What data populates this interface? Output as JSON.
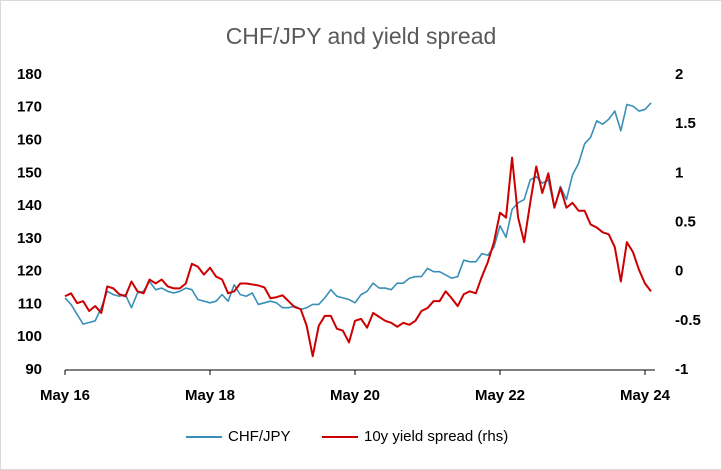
{
  "chart_data": {
    "type": "line",
    "title": "CHF/JPY and yield spread",
    "categories": [
      "May 16",
      null,
      null,
      null,
      null,
      null,
      null,
      null,
      null,
      null,
      null,
      null,
      null,
      null,
      null,
      null,
      null,
      null,
      null,
      null,
      null,
      null,
      null,
      null,
      "May 18",
      null,
      null,
      null,
      null,
      null,
      null,
      null,
      null,
      null,
      null,
      null,
      null,
      null,
      null,
      null,
      null,
      null,
      null,
      null,
      null,
      null,
      null,
      null,
      "May 20",
      null,
      null,
      null,
      null,
      null,
      null,
      null,
      null,
      null,
      null,
      null,
      null,
      null,
      null,
      null,
      null,
      null,
      null,
      null,
      null,
      null,
      null,
      null,
      "May 22",
      null,
      null,
      null,
      null,
      null,
      null,
      null,
      null,
      null,
      null,
      null,
      null,
      null,
      null,
      null,
      null,
      null,
      null,
      null,
      null,
      null,
      null,
      null,
      "May 24",
      null
    ],
    "series": [
      {
        "name": "CHF/JPY",
        "color": "#3a8fb7",
        "values": [
          112,
          110,
          107,
          104,
          104.5,
          105,
          109,
          114,
          113,
          112.5,
          113,
          109,
          113.5,
          114,
          117,
          114.5,
          115,
          114,
          113.5,
          114,
          115,
          114.5,
          111.5,
          111,
          110.5,
          111,
          113,
          111,
          116,
          113,
          112.5,
          113.5,
          110,
          110.5,
          111,
          110.5,
          109,
          109,
          109.5,
          108.5,
          109,
          110,
          110,
          112,
          114.5,
          112.5,
          112,
          111.5,
          110.5,
          113,
          114,
          116.5,
          115,
          115,
          114.5,
          116.5,
          116.5,
          118,
          118.5,
          118.5,
          121,
          120,
          120,
          119,
          118,
          118.5,
          123.5,
          123,
          123,
          125.5,
          125,
          127.5,
          134,
          130.5,
          139,
          141,
          142,
          148,
          149,
          147,
          148,
          139.5,
          146,
          142,
          149.5,
          153,
          159,
          161,
          166,
          165,
          166.5,
          169,
          163,
          171,
          170.5,
          169,
          169.5,
          171.5
        ]
      },
      {
        "name": "10y yield spread (rhs)",
        "color": "#cc0000",
        "axis": "y2",
        "values": [
          -0.25,
          -0.22,
          -0.32,
          -0.3,
          -0.4,
          -0.35,
          -0.42,
          -0.15,
          -0.17,
          -0.23,
          -0.25,
          -0.1,
          -0.2,
          -0.22,
          -0.08,
          -0.12,
          -0.08,
          -0.15,
          -0.17,
          -0.17,
          -0.12,
          0.08,
          0.05,
          -0.03,
          0.04,
          -0.05,
          -0.08,
          -0.22,
          -0.2,
          -0.12,
          -0.12,
          -0.13,
          -0.14,
          -0.16,
          -0.27,
          -0.26,
          -0.24,
          -0.3,
          -0.36,
          -0.38,
          -0.55,
          -0.86,
          -0.55,
          -0.45,
          -0.45,
          -0.58,
          -0.6,
          -0.72,
          -0.5,
          -0.48,
          -0.57,
          -0.42,
          -0.46,
          -0.5,
          -0.52,
          -0.56,
          -0.52,
          -0.54,
          -0.5,
          -0.4,
          -0.37,
          -0.3,
          -0.3,
          -0.2,
          -0.27,
          -0.35,
          -0.23,
          -0.2,
          -0.22,
          -0.05,
          0.1,
          0.3,
          0.6,
          0.55,
          1.16,
          0.55,
          0.3,
          0.7,
          1.07,
          0.8,
          1.0,
          0.65,
          0.85,
          0.65,
          0.7,
          0.62,
          0.62,
          0.48,
          0.45,
          0.4,
          0.38,
          0.25,
          -0.1,
          0.3,
          0.2,
          0.02,
          -0.12,
          -0.2
        ]
      }
    ],
    "ylim": [
      90,
      180
    ],
    "yticks": [
      90,
      100,
      110,
      120,
      130,
      140,
      150,
      160,
      170,
      180
    ],
    "y2lim": [
      -1,
      2
    ],
    "y2ticks": [
      -1,
      -0.5,
      0,
      0.5,
      1,
      1.5,
      2
    ],
    "legend": "bottom"
  }
}
